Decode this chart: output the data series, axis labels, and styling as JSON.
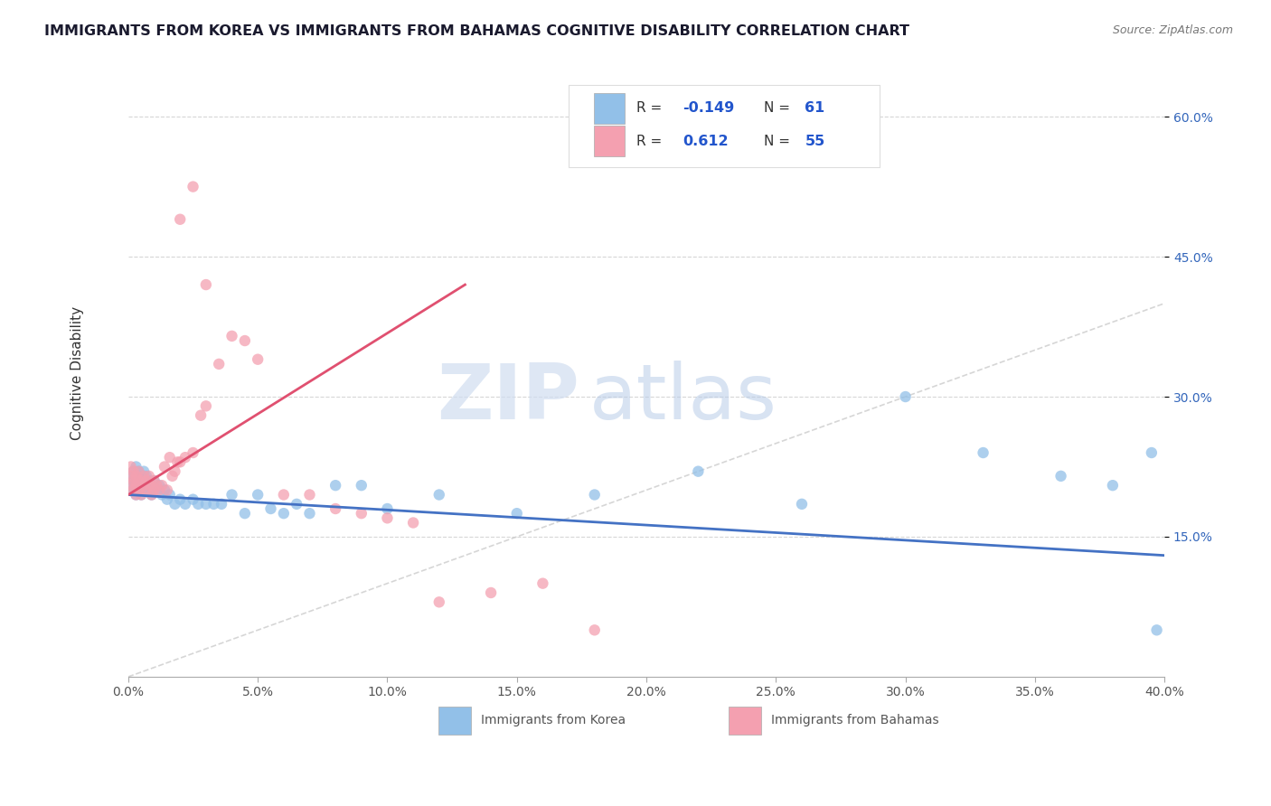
{
  "title": "IMMIGRANTS FROM KOREA VS IMMIGRANTS FROM BAHAMAS COGNITIVE DISABILITY CORRELATION CHART",
  "source": "Source: ZipAtlas.com",
  "ylabel": "Cognitive Disability",
  "xlim": [
    0.0,
    0.4
  ],
  "ylim": [
    0.0,
    0.65
  ],
  "ytick_vals": [
    0.15,
    0.3,
    0.45,
    0.6
  ],
  "ytick_labels": [
    "15.0%",
    "30.0%",
    "45.0%",
    "60.0%"
  ],
  "xtick_vals": [
    0.0,
    0.05,
    0.1,
    0.15,
    0.2,
    0.25,
    0.3,
    0.35,
    0.4
  ],
  "korea_R": -0.149,
  "korea_N": 61,
  "bahamas_R": 0.612,
  "bahamas_N": 55,
  "korea_color": "#92C0E8",
  "bahamas_color": "#F4A0B0",
  "korea_line_color": "#4472C4",
  "bahamas_line_color": "#E05070",
  "background_color": "#FFFFFF",
  "grid_color": "#CCCCCC",
  "watermark_zip": "ZIP",
  "watermark_atlas": "atlas",
  "korea_scatter_x": [
    0.001,
    0.001,
    0.002,
    0.002,
    0.002,
    0.003,
    0.003,
    0.003,
    0.003,
    0.004,
    0.004,
    0.004,
    0.005,
    0.005,
    0.005,
    0.006,
    0.006,
    0.006,
    0.007,
    0.007,
    0.008,
    0.008,
    0.009,
    0.009,
    0.01,
    0.01,
    0.011,
    0.012,
    0.013,
    0.014,
    0.015,
    0.016,
    0.018,
    0.02,
    0.022,
    0.025,
    0.027,
    0.03,
    0.033,
    0.036,
    0.04,
    0.045,
    0.05,
    0.055,
    0.06,
    0.065,
    0.07,
    0.08,
    0.09,
    0.1,
    0.12,
    0.15,
    0.18,
    0.22,
    0.26,
    0.3,
    0.33,
    0.36,
    0.38,
    0.395,
    0.397
  ],
  "korea_scatter_y": [
    0.205,
    0.215,
    0.2,
    0.21,
    0.22,
    0.195,
    0.205,
    0.215,
    0.225,
    0.2,
    0.21,
    0.22,
    0.195,
    0.205,
    0.215,
    0.2,
    0.21,
    0.22,
    0.205,
    0.215,
    0.2,
    0.21,
    0.195,
    0.205,
    0.2,
    0.21,
    0.2,
    0.205,
    0.195,
    0.2,
    0.19,
    0.195,
    0.185,
    0.19,
    0.185,
    0.19,
    0.185,
    0.185,
    0.185,
    0.185,
    0.195,
    0.175,
    0.195,
    0.18,
    0.175,
    0.185,
    0.175,
    0.205,
    0.205,
    0.18,
    0.195,
    0.175,
    0.195,
    0.22,
    0.185,
    0.3,
    0.24,
    0.215,
    0.205,
    0.24,
    0.05
  ],
  "bahamas_scatter_x": [
    0.001,
    0.001,
    0.001,
    0.002,
    0.002,
    0.002,
    0.003,
    0.003,
    0.003,
    0.004,
    0.004,
    0.004,
    0.005,
    0.005,
    0.006,
    0.006,
    0.007,
    0.007,
    0.008,
    0.008,
    0.009,
    0.009,
    0.01,
    0.01,
    0.011,
    0.012,
    0.013,
    0.014,
    0.015,
    0.016,
    0.017,
    0.018,
    0.019,
    0.02,
    0.022,
    0.025,
    0.028,
    0.03,
    0.035,
    0.04,
    0.045,
    0.05,
    0.06,
    0.07,
    0.08,
    0.09,
    0.1,
    0.11,
    0.12,
    0.14,
    0.16,
    0.18,
    0.02,
    0.025,
    0.03
  ],
  "bahamas_scatter_y": [
    0.205,
    0.215,
    0.225,
    0.2,
    0.21,
    0.22,
    0.195,
    0.205,
    0.215,
    0.2,
    0.21,
    0.22,
    0.195,
    0.21,
    0.205,
    0.215,
    0.2,
    0.21,
    0.205,
    0.215,
    0.195,
    0.205,
    0.2,
    0.21,
    0.205,
    0.2,
    0.205,
    0.225,
    0.2,
    0.235,
    0.215,
    0.22,
    0.23,
    0.23,
    0.235,
    0.24,
    0.28,
    0.29,
    0.335,
    0.365,
    0.36,
    0.34,
    0.195,
    0.195,
    0.18,
    0.175,
    0.17,
    0.165,
    0.08,
    0.09,
    0.1,
    0.05,
    0.49,
    0.525,
    0.42
  ],
  "korea_line_x": [
    0.0,
    0.4
  ],
  "korea_line_y": [
    0.195,
    0.13
  ],
  "bahamas_line_x": [
    0.0,
    0.13
  ],
  "bahamas_line_y": [
    0.195,
    0.42
  ],
  "diag_line_x": [
    0.0,
    0.4
  ],
  "diag_line_y": [
    0.0,
    0.4
  ]
}
